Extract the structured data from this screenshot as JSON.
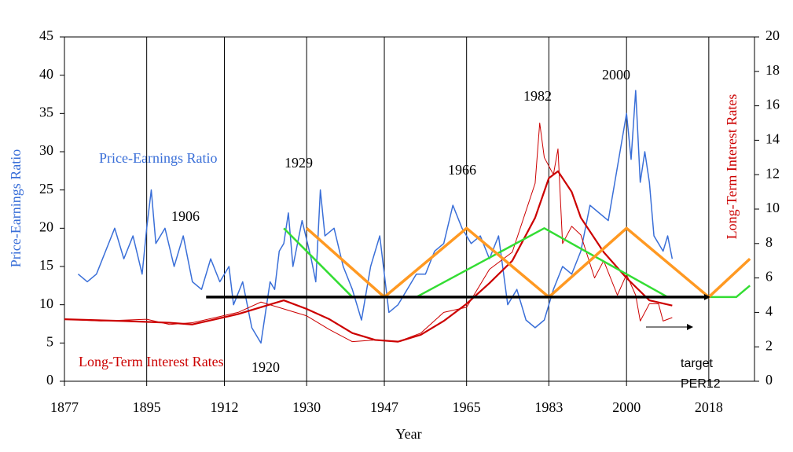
{
  "chart_data": {
    "type": "line",
    "x_label": "Year",
    "y_label": "Price-Earnings Ratio",
    "y2_label": "Long-Term Interest Rates",
    "xlim": [
      1877,
      2028
    ],
    "xticks": [
      1877,
      1895,
      1912,
      1930,
      1947,
      1965,
      1983,
      2000,
      2018
    ],
    "ylim": [
      0,
      45
    ],
    "yticks": [
      0,
      5,
      10,
      15,
      20,
      25,
      30,
      35,
      40,
      45
    ],
    "y2lim": [
      0,
      20
    ],
    "y2ticks": [
      0,
      2,
      4,
      6,
      8,
      10,
      12,
      14,
      16,
      18,
      20
    ],
    "grid": true,
    "series": [
      {
        "name": "Price-Earnings Ratio",
        "color": "#3a6fd8",
        "axis": "y",
        "width": 1.5,
        "x": [
          1880,
          1882,
          1884,
          1886,
          1888,
          1890,
          1892,
          1894,
          1895,
          1896,
          1897,
          1899,
          1901,
          1903,
          1905,
          1907,
          1909,
          1911,
          1913,
          1914,
          1916,
          1918,
          1920,
          1922,
          1923,
          1924,
          1925,
          1926,
          1927,
          1929,
          1931,
          1932,
          1933,
          1934,
          1936,
          1938,
          1940,
          1942,
          1944,
          1946,
          1948,
          1950,
          1952,
          1954,
          1956,
          1958,
          1960,
          1962,
          1964,
          1966,
          1968,
          1970,
          1972,
          1974,
          1976,
          1978,
          1980,
          1982,
          1984,
          1986,
          1988,
          1990,
          1992,
          1994,
          1996,
          1998,
          2000,
          2001,
          2002,
          2003,
          2004,
          2005,
          2006,
          2008,
          2009,
          2010
        ],
        "values": [
          14,
          13,
          14,
          17,
          20,
          16,
          19,
          14,
          20,
          25,
          18,
          20,
          15,
          19,
          13,
          12,
          16,
          13,
          15,
          10,
          13,
          7,
          5,
          13,
          12,
          17,
          18,
          22,
          15,
          21,
          16,
          13,
          25,
          19,
          20,
          15,
          12,
          8,
          15,
          19,
          9,
          10,
          12,
          14,
          14,
          17,
          18,
          23,
          20,
          18,
          19,
          16,
          19,
          10,
          12,
          8,
          7,
          8,
          12,
          15,
          14,
          17,
          23,
          22,
          21,
          28,
          35,
          29,
          38,
          26,
          30,
          26,
          19,
          17,
          19,
          16
        ]
      },
      {
        "name": "Long-Term Interest Rates",
        "color": "#cc0000",
        "axis": "y2",
        "width": 1,
        "x": [
          1877,
          1885,
          1895,
          1900,
          1905,
          1910,
          1915,
          1920,
          1925,
          1930,
          1935,
          1940,
          1945,
          1950,
          1955,
          1960,
          1965,
          1970,
          1975,
          1980,
          1981,
          1982,
          1984,
          1985,
          1986,
          1988,
          1990,
          1993,
          1995,
          1998,
          2000,
          2002,
          2003,
          2005,
          2007,
          2008,
          2010
        ],
        "values": [
          3.6,
          3.5,
          3.6,
          3.3,
          3.4,
          3.7,
          4.0,
          4.6,
          4.2,
          3.8,
          3.0,
          2.3,
          2.4,
          2.3,
          2.8,
          4.0,
          4.3,
          6.5,
          7.5,
          11.5,
          15.0,
          13,
          12,
          13.5,
          8,
          9,
          8.5,
          6,
          7,
          5,
          6.2,
          5,
          3.5,
          4.5,
          4.5,
          3.5,
          3.7
        ]
      },
      {
        "color": "#cc0000",
        "axis": "y2",
        "width": 2.2,
        "x": [
          1877,
          1890,
          1900,
          1905,
          1910,
          1915,
          1920,
          1925,
          1930,
          1935,
          1940,
          1945,
          1950,
          1955,
          1960,
          1965,
          1970,
          1975,
          1980,
          1983,
          1985,
          1988,
          1990,
          1995,
          2000,
          2005,
          2010
        ],
        "values": [
          3.6,
          3.5,
          3.4,
          3.3,
          3.6,
          3.9,
          4.3,
          4.7,
          4.2,
          3.6,
          2.8,
          2.4,
          2.3,
          2.7,
          3.5,
          4.5,
          5.7,
          7.0,
          9.5,
          11.8,
          12.2,
          11,
          9.5,
          7.5,
          6.0,
          4.7,
          4.4
        ]
      },
      {
        "color": "#33dd33",
        "axis": "y",
        "width": 2.5,
        "x": [
          1925,
          1940,
          1954,
          1982,
          2009,
          2024,
          2027
        ],
        "values": [
          20,
          11,
          11,
          20,
          11,
          11,
          12.5
        ]
      },
      {
        "color": "#ff9922",
        "axis": "y",
        "width": 3.5,
        "x": [
          1930,
          1947,
          1965,
          1983,
          2000,
          2018,
          2027
        ],
        "values": [
          20,
          11,
          20,
          11,
          20,
          11,
          16
        ]
      },
      {
        "color": "#000000",
        "axis": "y",
        "width": 3.5,
        "x": [
          1908,
          2018
        ],
        "values": [
          11,
          11
        ]
      }
    ],
    "annotations": [
      "Price-Earnings Ratio",
      "1906",
      "1929",
      "1966",
      "1982",
      "2000",
      "Long-Term Interest Rates",
      "1920",
      "target",
      "PER12"
    ]
  }
}
